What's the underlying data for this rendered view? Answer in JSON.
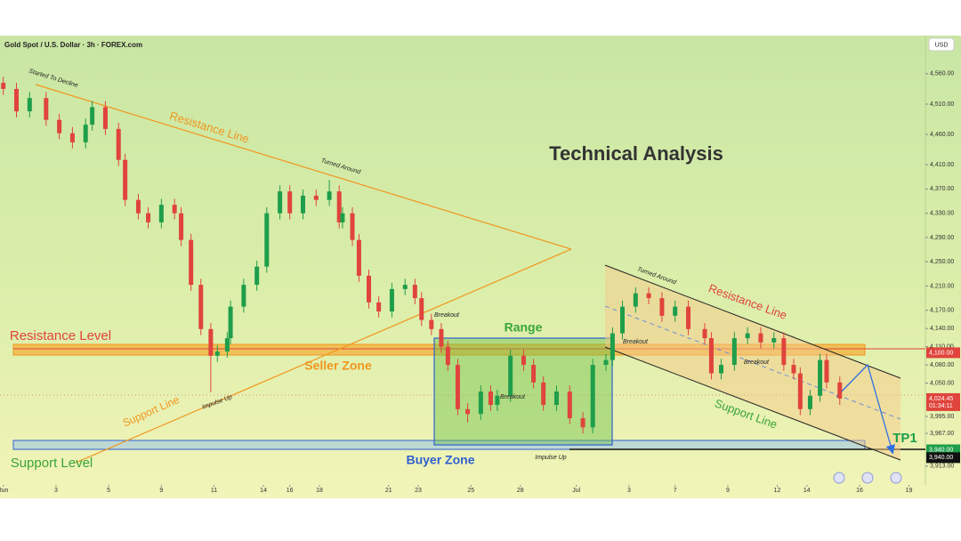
{
  "chart_data": {
    "type": "candlestick",
    "title": "Technical Analysis",
    "subtitle": "Gold Spot / U.S. Dollar · 3h · FOREX.com",
    "currency": "USD",
    "up_color": "#1e9e4a",
    "down_color": "#e0443c",
    "x": [
      1,
      5,
      9,
      14,
      18,
      22,
      26,
      28,
      32,
      36,
      38,
      42,
      45,
      49,
      53,
      55,
      58,
      61,
      64,
      66,
      69,
      70,
      74,
      78,
      81,
      85,
      88,
      92,
      96,
      100,
      103,
      104,
      107,
      109,
      112,
      115,
      119,
      123,
      126,
      128,
      131,
      134,
      136,
      139,
      142,
      146,
      149,
      151,
      155,
      159,
      162,
      165,
      169,
      173,
      177,
      180,
      184,
      186,
      189,
      193,
      197,
      201,
      205,
      209,
      214,
      216,
      219,
      223,
      227,
      231,
      235,
      238,
      241,
      243,
      246,
      249,
      251,
      255
    ],
    "open": [
      4545,
      4535,
      4498,
      4520,
      4484,
      4462,
      4447,
      4476,
      4505,
      4469,
      4418,
      4352,
      4330,
      4315,
      4344,
      4330,
      4286,
      4212,
      4139,
      4095,
      4102,
      4124,
      4176,
      4212,
      4242,
      4330,
      4366,
      4330,
      4359,
      4352,
      4366,
      4315,
      4330,
      4286,
      4227,
      4183,
      4168,
      4205,
      4212,
      4190,
      4154,
      4139,
      4110,
      4080,
      4007,
      3999,
      4036,
      4014,
      4029,
      4095,
      4080,
      4051,
      4014,
      4036,
      3992,
      3977,
      4080,
      4088,
      4132,
      4176,
      4198,
      4190,
      4161,
      4176,
      4139,
      4124,
      4066,
      4080,
      4124,
      4132,
      4117,
      4124,
      4080,
      4066,
      4007,
      4029,
      4088,
      4051
    ],
    "high": [
      4555,
      4545,
      4530,
      4530,
      4494,
      4472,
      4486,
      4515,
      4515,
      4479,
      4428,
      4362,
      4340,
      4354,
      4354,
      4340,
      4296,
      4222,
      4149,
      4112,
      4134,
      4186,
      4222,
      4252,
      4340,
      4376,
      4376,
      4369,
      4369,
      4385,
      4376,
      4340,
      4340,
      4296,
      4237,
      4193,
      4215,
      4222,
      4222,
      4200,
      4164,
      4149,
      4120,
      4090,
      4017,
      4046,
      4046,
      4039,
      4105,
      4105,
      4090,
      4061,
      4046,
      4046,
      4002,
      4090,
      4098,
      4142,
      4186,
      4208,
      4208,
      4200,
      4186,
      4186,
      4149,
      4134,
      4090,
      4134,
      4142,
      4142,
      4134,
      4134,
      4090,
      4076,
      4039,
      4098,
      4098,
      4061
    ],
    "low": [
      4525,
      4488,
      4488,
      4474,
      4452,
      4437,
      4437,
      4466,
      4459,
      4408,
      4342,
      4320,
      4305,
      4305,
      4320,
      4276,
      4202,
      4129,
      4035,
      4085,
      4092,
      4114,
      4166,
      4202,
      4232,
      4320,
      4320,
      4320,
      4342,
      4342,
      4305,
      4305,
      4276,
      4217,
      4173,
      4158,
      4158,
      4195,
      4180,
      4144,
      4129,
      4100,
      4070,
      3997,
      3985,
      3989,
      4004,
      4004,
      4019,
      4070,
      4041,
      4004,
      4004,
      3982,
      3967,
      3967,
      4070,
      4078,
      4122,
      4166,
      4180,
      4151,
      4151,
      4129,
      4114,
      4056,
      4056,
      4070,
      4114,
      4107,
      4107,
      4070,
      4056,
      3997,
      3997,
      4019,
      4041,
      4014
    ],
    "close": [
      4535,
      4498,
      4520,
      4484,
      4462,
      4447,
      4476,
      4505,
      4469,
      4418,
      4352,
      4330,
      4315,
      4344,
      4330,
      4286,
      4212,
      4139,
      4095,
      4102,
      4124,
      4176,
      4212,
      4242,
      4330,
      4366,
      4330,
      4359,
      4352,
      4366,
      4315,
      4330,
      4286,
      4227,
      4183,
      4168,
      4205,
      4212,
      4190,
      4154,
      4139,
      4110,
      4080,
      4007,
      3999,
      4036,
      4014,
      4029,
      4095,
      4080,
      4051,
      4014,
      4036,
      3992,
      3977,
      4080,
      4088,
      4132,
      4176,
      4198,
      4190,
      4161,
      4176,
      4139,
      4124,
      4066,
      4080,
      4124,
      4132,
      4117,
      4124,
      4080,
      4066,
      4007,
      4029,
      4088,
      4051,
      4024.45
    ],
    "xlim": [
      0,
      281
    ],
    "xticks": [
      {
        "value": 1,
        "label": "Jun"
      },
      {
        "value": 17,
        "label": "3"
      },
      {
        "value": 33,
        "label": "5"
      },
      {
        "value": 49,
        "label": "9"
      },
      {
        "value": 65,
        "label": "11"
      },
      {
        "value": 80,
        "label": "14"
      },
      {
        "value": 88,
        "label": "16"
      },
      {
        "value": 97,
        "label": "18"
      },
      {
        "value": 118,
        "label": "21"
      },
      {
        "value": 127,
        "label": "23"
      },
      {
        "value": 143,
        "label": "25"
      },
      {
        "value": 158,
        "label": "28"
      },
      {
        "value": 175,
        "label": "Jul"
      },
      {
        "value": 191,
        "label": "3"
      },
      {
        "value": 205,
        "label": "7"
      },
      {
        "value": 221,
        "label": "9"
      },
      {
        "value": 236,
        "label": "12"
      },
      {
        "value": 245,
        "label": "14"
      },
      {
        "value": 261,
        "label": "16"
      },
      {
        "value": 276,
        "label": "19"
      }
    ],
    "ylim": [
      3882,
      4620
    ],
    "yticks": [
      {
        "value": 4560,
        "label": "4,560.00"
      },
      {
        "value": 4510,
        "label": "4,510.00"
      },
      {
        "value": 4460,
        "label": "4,460.00"
      },
      {
        "value": 4410,
        "label": "4,410.00"
      },
      {
        "value": 4370,
        "label": "4,370.00"
      },
      {
        "value": 4330,
        "label": "4,330.00"
      },
      {
        "value": 4290,
        "label": "4,290.00"
      },
      {
        "value": 4250,
        "label": "4,250.00"
      },
      {
        "value": 4210,
        "label": "4,210.00"
      },
      {
        "value": 4170,
        "label": "4,170.00"
      },
      {
        "value": 4140,
        "label": "4,140.00"
      },
      {
        "value": 4110,
        "label": "4,110.00"
      },
      {
        "value": 4080,
        "label": "4,080.00"
      },
      {
        "value": 4050,
        "label": "4,050.00"
      },
      {
        "value": 3995,
        "label": "3,995.00"
      },
      {
        "value": 3967,
        "label": "3,967.00"
      },
      {
        "value": 3913,
        "label": "3,913.00"
      }
    ],
    "grid": false,
    "price_labels": [
      {
        "value": 4100,
        "label": "4,100.00",
        "color": "#e0443c"
      },
      {
        "value": 4024.45,
        "label": "4,024.45",
        "color": "#e0443c"
      },
      {
        "value": 3940,
        "label": "3,940.00",
        "color": "#1e9e4a"
      },
      {
        "value": 3927,
        "label": "3,940.00",
        "color": "#111111"
      }
    ],
    "countdown": "01:34:11",
    "annotations": [
      {
        "text": "Started To Decline",
        "color": "#222222"
      },
      {
        "text": "Resistance Line",
        "color": "#f0961e"
      },
      {
        "text": "Turned Around",
        "color": "#222222"
      },
      {
        "text": "Support Line",
        "color": "#f0961e"
      },
      {
        "text": "Impulse Up",
        "color": "#222222"
      },
      {
        "text": "Breakout",
        "color": "#222222"
      },
      {
        "text": "Range",
        "color": "#3aa53a"
      },
      {
        "text": "Resistance Level",
        "color": "#e0443c"
      },
      {
        "text": "Seller Zone",
        "color": "#f0961e"
      },
      {
        "text": "Support Level",
        "color": "#3aa53a"
      },
      {
        "text": "Buyer Zone",
        "color": "#2f5fd0"
      },
      {
        "text": "Breakout",
        "color": "#222222"
      },
      {
        "text": "Breakout",
        "color": "#222222"
      },
      {
        "text": "Impulse Up",
        "color": "#222222"
      },
      {
        "text": "Turned Around",
        "color": "#222222"
      },
      {
        "text": "Resistance Line",
        "color": "#e0443c"
      },
      {
        "text": "Breakout",
        "color": "#222222"
      },
      {
        "text": "Support Line",
        "color": "#3aa53a"
      },
      {
        "text": "TP1",
        "color": "#1e9e4a"
      }
    ]
  }
}
